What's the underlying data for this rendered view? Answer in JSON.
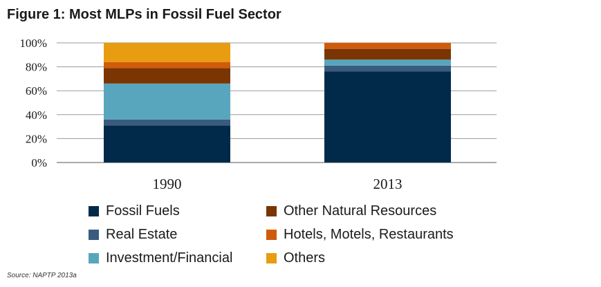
{
  "figure": {
    "title": "Figure 1: Most MLPs in Fossil Fuel Sector",
    "source": "Source:  NAPTP 2013a"
  },
  "chart_data": {
    "type": "bar",
    "stacked": true,
    "categories": [
      "1990",
      "2013"
    ],
    "series": [
      {
        "name": "Fossil Fuels",
        "color": "#012a4a",
        "values": [
          31,
          76
        ]
      },
      {
        "name": "Real Estate",
        "color": "#3b5b7e",
        "values": [
          5,
          5
        ]
      },
      {
        "name": "Investment/Financial",
        "color": "#58a6bd",
        "values": [
          30,
          5
        ]
      },
      {
        "name": "Other Natural Resources",
        "color": "#7b3503",
        "values": [
          13,
          9
        ]
      },
      {
        "name": "Hotels, Motels, Restaurants",
        "color": "#cf5c0c",
        "values": [
          5,
          5
        ]
      },
      {
        "name": "Others",
        "color": "#e89c0f",
        "values": [
          16,
          0
        ]
      }
    ],
    "ylim": [
      0,
      100
    ],
    "yticks": [
      "0%",
      "20%",
      "40%",
      "60%",
      "80%",
      "100%"
    ],
    "grid": true,
    "legend_position": "bottom",
    "xlabel": "",
    "ylabel": ""
  }
}
